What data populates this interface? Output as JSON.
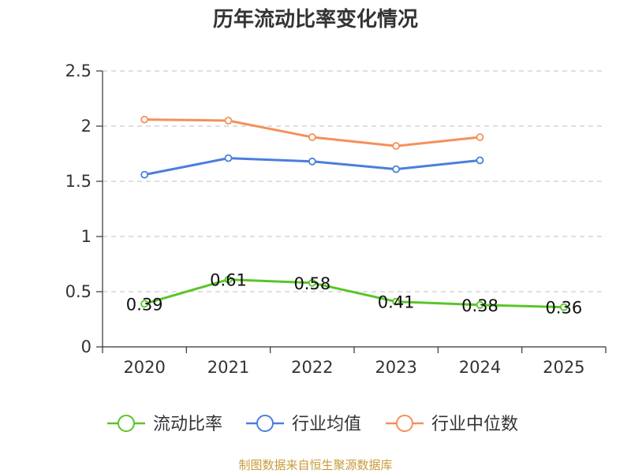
{
  "chart_data": {
    "type": "line",
    "title": "历年流动比率变化情况",
    "categories": [
      "2020",
      "2021",
      "2022",
      "2023",
      "2024",
      "2025"
    ],
    "ylim": [
      0,
      2.5
    ],
    "yticks": [
      "0",
      "0.5",
      "1",
      "1.5",
      "2",
      "2.5"
    ],
    "ytick_values": [
      0,
      0.5,
      1,
      1.5,
      2,
      2.5
    ],
    "grid": true,
    "legend_position": "bottom",
    "series": [
      {
        "name": "流动比率",
        "color": "#5ac528",
        "values": [
          0.39,
          0.61,
          0.58,
          0.41,
          0.38,
          0.36
        ],
        "labels": [
          "0.39",
          "0.61",
          "0.58",
          "0.41",
          "0.38",
          "0.36"
        ]
      },
      {
        "name": "行业均值",
        "color": "#4a7fdb",
        "values": [
          1.56,
          1.71,
          1.68,
          1.61,
          1.69,
          null
        ]
      },
      {
        "name": "行业中位数",
        "color": "#f5905a",
        "values": [
          2.06,
          2.05,
          1.9,
          1.82,
          1.9,
          null
        ]
      }
    ]
  },
  "source": "制图数据来自恒生聚源数据库"
}
